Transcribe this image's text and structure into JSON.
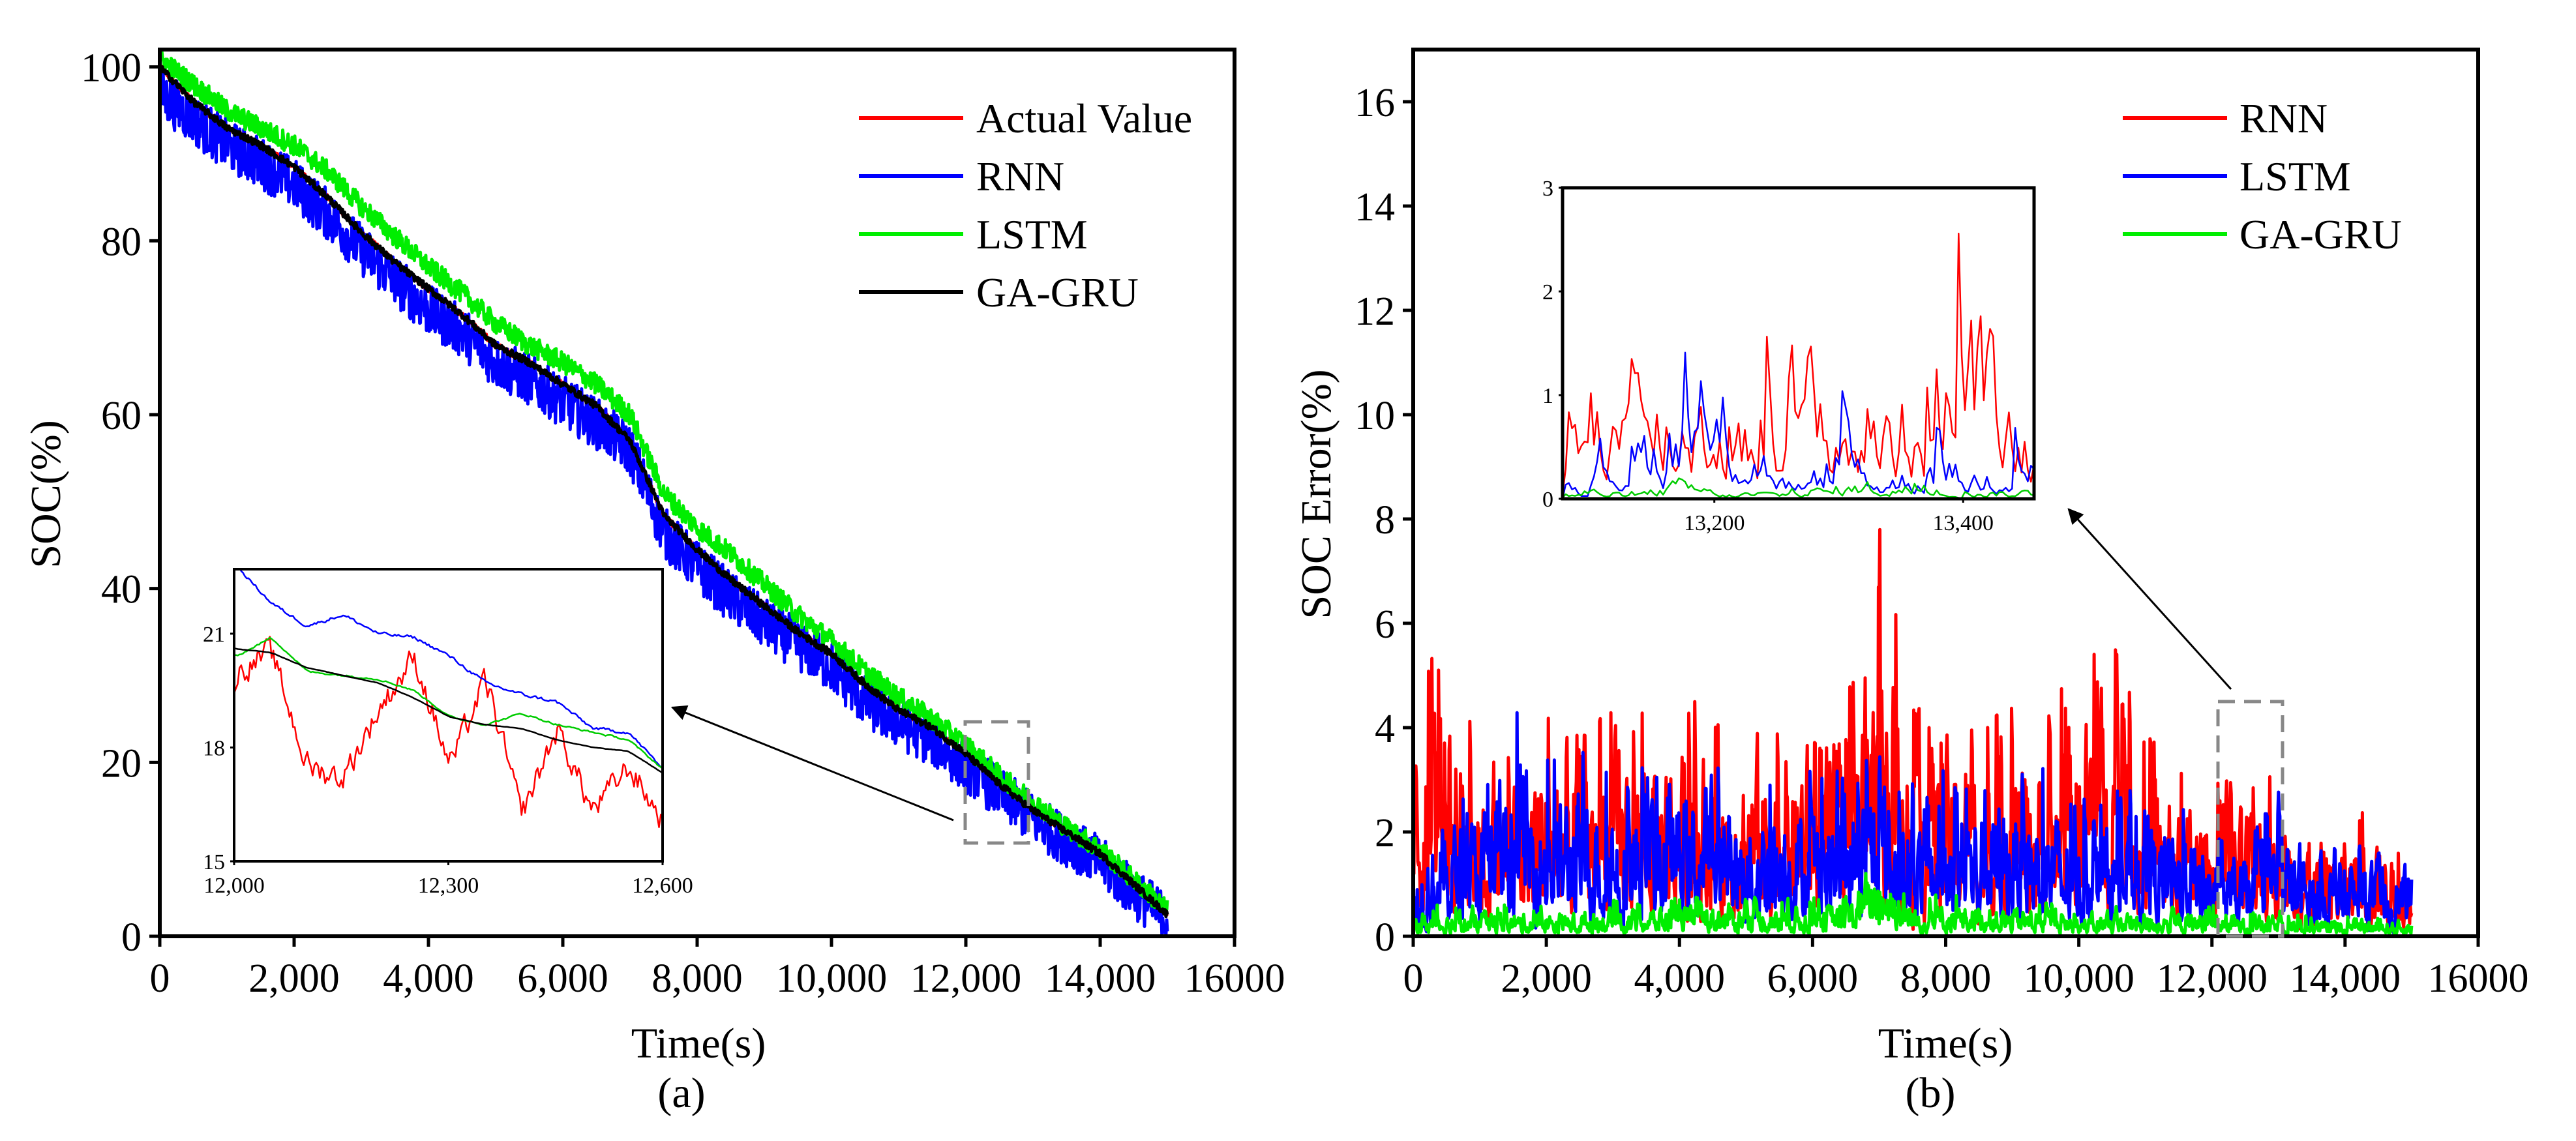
{
  "chart_data": [
    {
      "type": "line",
      "panel_label": "(a)",
      "xlabel": "Time(s)",
      "ylabel": "SOC(%)",
      "xlim": [
        0,
        16000
      ],
      "ylim": [
        0,
        102
      ],
      "x_ticks": [
        0,
        2000,
        4000,
        6000,
        8000,
        10000,
        12000,
        14000,
        16000
      ],
      "x_tick_labels": [
        "0",
        "2,000",
        "4,000",
        "6,000",
        "8,000",
        "10,000",
        "12,000",
        "14,000",
        "16000"
      ],
      "y_ticks": [
        0,
        20,
        40,
        60,
        80,
        100
      ],
      "y_tick_labels": [
        "0",
        "20",
        "40",
        "60",
        "80",
        "100"
      ],
      "legend_position": "top-right",
      "x": [
        0,
        500,
        1000,
        1500,
        2000,
        2500,
        3000,
        3500,
        4000,
        4500,
        5000,
        5500,
        6000,
        6500,
        7000,
        7500,
        8000,
        8500,
        9000,
        9500,
        10000,
        10500,
        11000,
        11500,
        12000,
        12500,
        13000,
        13500,
        14000,
        14500,
        15000
      ],
      "series": [
        {
          "name": "Actual Value",
          "color": "#ff0000",
          "noise": 0.3,
          "values": [
            100,
            96,
            93,
            91,
            88.5,
            85,
            81,
            77.5,
            74.5,
            71.5,
            68,
            66,
            63.5,
            61,
            57,
            48.5,
            44.5,
            41,
            38,
            35,
            32.5,
            29,
            26,
            24,
            21,
            17.5,
            14.5,
            12,
            9.5,
            6,
            2.5
          ]
        },
        {
          "name": "RNN",
          "color": "#0000ff",
          "noise": 3.0,
          "values": [
            97,
            94,
            91,
            89,
            86.5,
            83,
            79,
            75.5,
            72,
            69.5,
            66,
            64,
            61.5,
            59,
            56,
            46.5,
            42.5,
            39,
            36,
            33.5,
            31,
            27,
            24.5,
            22.5,
            19.5,
            16.5,
            13.5,
            11,
            8.5,
            5,
            2
          ]
        },
        {
          "name": "LSTM",
          "color": "#00ee00",
          "noise": 1.2,
          "values": [
            101,
            98,
            95,
            93,
            91,
            88,
            84,
            80.5,
            77,
            74,
            70.5,
            68,
            66,
            63.5,
            60,
            51,
            47,
            44,
            40.5,
            37,
            34,
            30.5,
            27.5,
            25,
            22,
            18.5,
            15.5,
            12.5,
            10,
            6.5,
            3
          ]
        },
        {
          "name": "GA-GRU",
          "color": "#000000",
          "noise": 0.4,
          "values": [
            100,
            96,
            93,
            91,
            88.5,
            85,
            81,
            77.5,
            74.5,
            71.5,
            68,
            66,
            63.5,
            61,
            57,
            48.5,
            44.5,
            41,
            38,
            35,
            32.5,
            29,
            26,
            24,
            21,
            17.5,
            14.5,
            12,
            9.5,
            6,
            2.5
          ]
        }
      ],
      "inset": {
        "xlim": [
          12000,
          12600
        ],
        "ylim": [
          15,
          22.7
        ],
        "x_ticks": [
          12000,
          12300,
          12600
        ],
        "x_tick_labels": [
          "12,000",
          "12,300",
          "12,600"
        ],
        "y_ticks": [
          15,
          18,
          21
        ],
        "y_tick_labels": [
          "15",
          "18",
          "21"
        ],
        "x": [
          12000,
          12050,
          12100,
          12150,
          12200,
          12250,
          12300,
          12350,
          12400,
          12450,
          12500,
          12550,
          12600
        ],
        "series": [
          {
            "name": "Actual Value",
            "color": "#ff0000",
            "noise": 1.2,
            "values": [
              20,
              20.5,
              17.5,
              17.2,
              19,
              20.4,
              17.5,
              19.8,
              16.2,
              18.5,
              16.3,
              17.5,
              16
            ]
          },
          {
            "name": "RNN",
            "color": "#0000ff",
            "noise": 0.15,
            "values": [
              22.8,
              21.8,
              21.2,
              21.5,
              21.0,
              20.9,
              20.4,
              19.7,
              19.4,
              19.2,
              18.5,
              18.4,
              17.4
            ]
          },
          {
            "name": "LSTM",
            "color": "#00cc00",
            "noise": 0.08,
            "values": [
              20.4,
              20.9,
              20.0,
              19.9,
              19.8,
              19.5,
              18.8,
              18.6,
              18.9,
              18.6,
              18.4,
              18.2,
              17.4
            ]
          },
          {
            "name": "GA-GRU",
            "color": "#000000",
            "noise": 0.02,
            "values": [
              20.6,
              20.5,
              20.1,
              19.9,
              19.7,
              19.3,
              18.8,
              18.6,
              18.5,
              18.2,
              18.0,
              17.9,
              17.3
            ]
          }
        ]
      }
    },
    {
      "type": "line",
      "panel_label": "(b)",
      "xlabel": "Time(s)",
      "ylabel": "SOC Error(%)",
      "xlim": [
        0,
        16000
      ],
      "ylim": [
        0,
        17
      ],
      "x_ticks": [
        0,
        2000,
        4000,
        6000,
        8000,
        10000,
        12000,
        14000,
        16000
      ],
      "x_tick_labels": [
        "0",
        "2,000",
        "4,000",
        "6,000",
        "8,000",
        "10,000",
        "12,000",
        "14,000",
        "16000"
      ],
      "y_ticks": [
        0,
        2,
        4,
        6,
        8,
        10,
        12,
        14,
        16
      ],
      "y_tick_labels": [
        "0",
        "2",
        "4",
        "6",
        "8",
        "10",
        "12",
        "14",
        "16"
      ],
      "legend_position": "top-right",
      "x": [
        0,
        500,
        1000,
        1500,
        2000,
        2500,
        3000,
        3500,
        4000,
        4500,
        5000,
        5500,
        6000,
        6500,
        7000,
        7500,
        8000,
        8500,
        9000,
        9500,
        10000,
        10500,
        11000,
        11500,
        12000,
        12500,
        13000,
        13500,
        14000,
        14500,
        15000
      ],
      "series": [
        {
          "name": "RNN",
          "color": "#ff0000",
          "values": [
            5,
            6.5,
            3.5,
            4,
            4.5,
            4.8,
            4.5,
            4.6,
            4.6,
            4.4,
            4.6,
            4.5,
            4.5,
            4.4,
            7.9,
            4.5,
            4.5,
            4.3,
            4.6,
            4.4,
            5.5,
            6,
            4,
            3.2,
            3,
            3,
            3.2,
            2.4,
            2.4,
            2.4,
            1.6
          ]
        },
        {
          "name": "LSTM",
          "color": "#0000ff",
          "values": [
            2,
            2.8,
            3,
            4.4,
            3.5,
            3.6,
            3.3,
            3.5,
            3.6,
            3.5,
            3,
            3.4,
            3.2,
            3.2,
            3.8,
            3,
            3.4,
            3.4,
            3.4,
            3.2,
            2.6,
            2.8,
            2.8,
            2.6,
            2.2,
            1.8,
            2.8,
            1.8,
            1.8,
            1.8,
            1.6
          ]
        },
        {
          "name": "GA-GRU",
          "color": "#00ee00",
          "values": [
            0.6,
            0.6,
            0.6,
            0.6,
            0.6,
            0.6,
            0.7,
            0.7,
            0.8,
            0.8,
            0.8,
            0.7,
            0.8,
            0.8,
            2,
            0.8,
            0.8,
            0.8,
            0.7,
            0.7,
            0.5,
            0.6,
            0.6,
            0.6,
            0.6,
            0.5,
            0.5,
            0.4,
            0.4,
            0.4,
            0.4
          ]
        }
      ],
      "inset": {
        "xlim": [
          13078,
          13457
        ],
        "ylim": [
          0,
          3
        ],
        "x_ticks": [
          13200,
          13400
        ],
        "x_tick_labels": [
          "13,200",
          "13,400"
        ],
        "y_ticks": [
          0,
          1,
          2,
          3
        ],
        "y_tick_labels": [
          "0",
          "1",
          "2",
          "3"
        ],
        "x": [
          13078,
          13103,
          13128,
          13153,
          13178,
          13203,
          13228,
          13253,
          13278,
          13303,
          13328,
          13353,
          13378,
          13403,
          13428,
          13457
        ],
        "series": [
          {
            "name": "RNN",
            "color": "#ff0000",
            "values": [
              1.8,
              1.8,
              1.6,
              1.5,
              1.6,
              1.8,
              1.0,
              2.2,
              1.9,
              1.3,
              1.5,
              1.4,
              2.3,
              2.7,
              1.7,
              0.9
            ]
          },
          {
            "name": "LSTM",
            "color": "#0000ff",
            "values": [
              0.1,
              0.5,
              0.9,
              1.1,
              1.45,
              1.2,
              1.1,
              0.3,
              0.2,
              1.05,
              0.3,
              0.4,
              0.75,
              0.3,
              0.7,
              0.8
            ]
          },
          {
            "name": "GA-GRU",
            "color": "#00cc00",
            "values": [
              0.1,
              0.15,
              0.05,
              0.15,
              0.3,
              0.05,
              0.1,
              0.1,
              0.15,
              0.2,
              0.25,
              0.2,
              0.1,
              0.15,
              0.1,
              0.15
            ]
          }
        ]
      }
    }
  ]
}
